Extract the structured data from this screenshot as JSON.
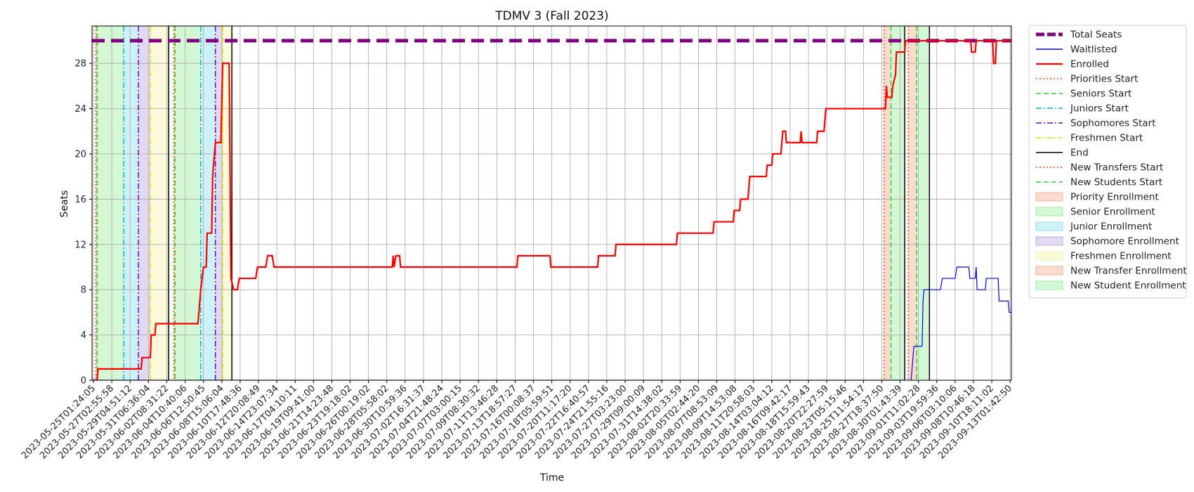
{
  "chart_data": {
    "type": "line",
    "title": "TDMV 3 (Fall 2023)",
    "xlabel": "Time",
    "ylabel": "Seats",
    "ylim": [
      0,
      30
    ],
    "yticks": [
      0,
      4,
      8,
      12,
      16,
      20,
      24,
      28
    ],
    "grid": true,
    "legend_placement": "outside-right",
    "x_tick_labels": [
      "2023-05-25T01:24:05",
      "2023-05-27T02:55:58",
      "2023-05-29T04:51:12",
      "2023-05-31T06:36:04",
      "2023-06-02T08:31:22",
      "2023-06-04T10:40:06",
      "2023-06-06T12:50:45",
      "2023-06-08T15:06:04",
      "2023-06-10T17:48:36",
      "2023-06-12T20:08:49",
      "2023-06-14T23:07:34",
      "2023-06-17T04:10:11",
      "2023-06-19T09:41:00",
      "2023-06-21T14:23:48",
      "2023-06-23T19:18:02",
      "2023-06-26T00:19:02",
      "2023-06-28T05:58:02",
      "2023-06-30T10:59:36",
      "2023-07-02T16:31:37",
      "2023-07-04T21:48:24",
      "2023-07-07T03:00:15",
      "2023-07-09T08:30:32",
      "2023-07-11T13:46:28",
      "2023-07-13T18:57:27",
      "2023-07-16T00:08:37",
      "2023-07-18T05:59:51",
      "2023-07-20T11:17:20",
      "2023-07-22T16:40:57",
      "2023-07-24T21:55:16",
      "2023-07-27T03:23:00",
      "2023-07-29T09:00:09",
      "2023-07-31T14:38:02",
      "2023-08-02T20:33:59",
      "2023-08-05T02:44:20",
      "2023-08-07T08:53:09",
      "2023-08-09T14:53:08",
      "2023-08-11T20:58:03",
      "2023-08-14T03:04:12",
      "2023-08-16T09:42:17",
      "2023-08-18T15:59:43",
      "2023-08-20T22:27:59",
      "2023-08-23T05:15:46",
      "2023-08-25T11:54:17",
      "2023-08-27T18:37:50",
      "2023-08-30T01:43:39",
      "2023-09-01T11:02:28",
      "2023-09-03T19:59:36",
      "2023-09-06T03:10:06",
      "2023-09-08T10:46:18",
      "2023-09-10T18:11:02",
      "2023-09-13T01:42:50"
    ],
    "x_range_tick_index": [
      -0.08,
      50.07
    ],
    "series": [
      {
        "name": "Total Seats",
        "color": "#800080",
        "style": "dashed",
        "points": [
          [
            -0.08,
            30
          ],
          [
            50.07,
            30
          ]
        ]
      },
      {
        "name": "Waitlisted",
        "color": "#0000ff",
        "style": "solid",
        "points": [
          [
            -0.08,
            0
          ],
          [
            44.6,
            0
          ],
          [
            44.75,
            3
          ],
          [
            45.2,
            3
          ],
          [
            45.25,
            7
          ],
          [
            45.3,
            8
          ],
          [
            46.2,
            8
          ],
          [
            46.3,
            9
          ],
          [
            47.0,
            9
          ],
          [
            47.1,
            10
          ],
          [
            47.75,
            10
          ],
          [
            47.8,
            9
          ],
          [
            48.1,
            9
          ],
          [
            48.15,
            10
          ],
          [
            48.2,
            8
          ],
          [
            48.65,
            8
          ],
          [
            48.7,
            9
          ],
          [
            49.35,
            9
          ],
          [
            49.4,
            7
          ],
          [
            49.9,
            7
          ],
          [
            49.95,
            6
          ],
          [
            50.07,
            6
          ]
        ]
      },
      {
        "name": "Enrolled",
        "color": "#ff0000",
        "style": "solid",
        "points": [
          [
            -0.08,
            0
          ],
          [
            0.2,
            0
          ],
          [
            0.25,
            1
          ],
          [
            2.6,
            1
          ],
          [
            2.65,
            2
          ],
          [
            3.1,
            2
          ],
          [
            3.15,
            4
          ],
          [
            3.35,
            4
          ],
          [
            3.4,
            5
          ],
          [
            5.7,
            5
          ],
          [
            5.75,
            6
          ],
          [
            5.85,
            8
          ],
          [
            6.0,
            10
          ],
          [
            6.15,
            10
          ],
          [
            6.2,
            13
          ],
          [
            6.45,
            13
          ],
          [
            6.5,
            18
          ],
          [
            6.65,
            21
          ],
          [
            6.95,
            21
          ],
          [
            7.05,
            28
          ],
          [
            7.4,
            28
          ],
          [
            7.5,
            9
          ],
          [
            7.65,
            8
          ],
          [
            7.85,
            8
          ],
          [
            7.95,
            9
          ],
          [
            8.85,
            9
          ],
          [
            8.95,
            10
          ],
          [
            9.4,
            10
          ],
          [
            9.5,
            11
          ],
          [
            9.75,
            11
          ],
          [
            9.85,
            10
          ],
          [
            16.3,
            10
          ],
          [
            16.35,
            11
          ],
          [
            16.4,
            10
          ],
          [
            16.5,
            11
          ],
          [
            16.7,
            11
          ],
          [
            16.75,
            10
          ],
          [
            23.1,
            10
          ],
          [
            23.15,
            11
          ],
          [
            24.9,
            11
          ],
          [
            24.95,
            10
          ],
          [
            27.5,
            10
          ],
          [
            27.55,
            11
          ],
          [
            28.45,
            11
          ],
          [
            28.5,
            12
          ],
          [
            31.8,
            12
          ],
          [
            31.85,
            13
          ],
          [
            33.8,
            13
          ],
          [
            33.85,
            14
          ],
          [
            34.9,
            14
          ],
          [
            34.95,
            15
          ],
          [
            35.25,
            15
          ],
          [
            35.3,
            16
          ],
          [
            35.7,
            16
          ],
          [
            35.75,
            17
          ],
          [
            35.8,
            18
          ],
          [
            36.7,
            18
          ],
          [
            36.75,
            19
          ],
          [
            37.0,
            19
          ],
          [
            37.05,
            20
          ],
          [
            37.5,
            20
          ],
          [
            37.6,
            22
          ],
          [
            37.75,
            22
          ],
          [
            37.8,
            21
          ],
          [
            38.55,
            21
          ],
          [
            38.6,
            22
          ],
          [
            38.65,
            21
          ],
          [
            39.45,
            21
          ],
          [
            39.5,
            22
          ],
          [
            39.85,
            22
          ],
          [
            39.9,
            23
          ],
          [
            39.95,
            24
          ],
          [
            43.2,
            24
          ],
          [
            43.25,
            26
          ],
          [
            43.3,
            25
          ],
          [
            43.55,
            25
          ],
          [
            43.6,
            26
          ],
          [
            43.75,
            27
          ],
          [
            43.8,
            29
          ],
          [
            44.25,
            29
          ],
          [
            44.3,
            30
          ],
          [
            47.85,
            30
          ],
          [
            47.9,
            29
          ],
          [
            48.1,
            29
          ],
          [
            48.15,
            30
          ],
          [
            49.05,
            30
          ],
          [
            49.1,
            28
          ],
          [
            49.2,
            28
          ],
          [
            49.25,
            30
          ],
          [
            50.07,
            30
          ]
        ]
      }
    ],
    "vertical_markers": [
      {
        "name": "Priorities Start",
        "color": "#ff4500",
        "style": "dotted",
        "x": [
          0.13,
          4.38,
          43.12,
          44.45
        ]
      },
      {
        "name": "Seniors Start",
        "color": "#32cd32",
        "style": "dashed",
        "x": [
          0.2,
          4.45,
          43.5,
          44.9
        ]
      },
      {
        "name": "Juniors Start",
        "color": "#00bcd4",
        "style": "dashdot",
        "x": [
          1.65,
          5.85
        ]
      },
      {
        "name": "Sophomores Start",
        "color": "#6a0dad",
        "style": "dashdot",
        "x": [
          2.45,
          6.65
        ]
      },
      {
        "name": "Freshmen Start",
        "color": "#e0e000",
        "style": "dashdot",
        "x": [
          3.1,
          7.05
        ]
      },
      {
        "name": "End",
        "color": "#000000",
        "style": "solid",
        "x": [
          4.1,
          7.55,
          44.25,
          45.6
        ]
      },
      {
        "name": "New Transfers Start",
        "color": "#ff4500",
        "style": "dotted",
        "x": []
      },
      {
        "name": "New Students Start",
        "color": "#32cd32",
        "style": "dashed",
        "x": []
      }
    ],
    "shaded_regions": [
      {
        "name": "Priority Enrollment",
        "color": "#f4a582",
        "spans": [
          [
            0.13,
            0.2
          ],
          [
            4.38,
            4.45
          ]
        ]
      },
      {
        "name": "Senior Enrollment",
        "color": "#90ee90",
        "spans": [
          [
            0.2,
            1.65
          ],
          [
            4.45,
            5.85
          ]
        ]
      },
      {
        "name": "Junior Enrollment",
        "color": "#7fdbe8",
        "spans": [
          [
            1.65,
            2.45
          ],
          [
            5.85,
            6.65
          ]
        ]
      },
      {
        "name": "Sophomore Enrollment",
        "color": "#b39ddb",
        "spans": [
          [
            2.45,
            3.1
          ],
          [
            6.65,
            7.05
          ]
        ]
      },
      {
        "name": "Freshmen Enrollment",
        "color": "#f3f3a6",
        "spans": [
          [
            3.1,
            4.1
          ],
          [
            7.05,
            7.55
          ]
        ]
      },
      {
        "name": "New Transfer Enrollment",
        "color": "#f4a582",
        "spans": [
          [
            43.12,
            43.5
          ],
          [
            44.45,
            44.9
          ]
        ]
      },
      {
        "name": "New Student Enrollment",
        "color": "#90ee90",
        "spans": [
          [
            43.5,
            44.25
          ],
          [
            44.9,
            45.6
          ]
        ]
      }
    ],
    "legend": [
      {
        "label": "Total Seats",
        "kind": "line",
        "color": "#800080",
        "style": "thick-dash"
      },
      {
        "label": "Waitlisted",
        "kind": "line",
        "color": "#0000ff",
        "style": "solid"
      },
      {
        "label": "Enrolled",
        "kind": "line",
        "color": "#ff0000",
        "style": "solid-bold"
      },
      {
        "label": "Priorities Start",
        "kind": "line",
        "color": "#ff4500",
        "style": "dotted"
      },
      {
        "label": "Seniors Start",
        "kind": "line",
        "color": "#32cd32",
        "style": "dashed"
      },
      {
        "label": "Juniors Start",
        "kind": "line",
        "color": "#00bcd4",
        "style": "dashdot"
      },
      {
        "label": "Sophomores Start",
        "kind": "line",
        "color": "#6a0dad",
        "style": "dashdot"
      },
      {
        "label": "Freshmen Start",
        "kind": "line",
        "color": "#e0e000",
        "style": "dashdot"
      },
      {
        "label": "End",
        "kind": "line",
        "color": "#000000",
        "style": "solid"
      },
      {
        "label": "New Transfers Start",
        "kind": "line",
        "color": "#ff4500",
        "style": "dotted"
      },
      {
        "label": "New Students Start",
        "kind": "line",
        "color": "#32cd32",
        "style": "dashed"
      },
      {
        "label": "Priority Enrollment",
        "kind": "patch",
        "color": "#f4a582"
      },
      {
        "label": "Senior Enrollment",
        "kind": "patch",
        "color": "#90ee90"
      },
      {
        "label": "Junior Enrollment",
        "kind": "patch",
        "color": "#7fdbe8"
      },
      {
        "label": "Sophomore Enrollment",
        "kind": "patch",
        "color": "#b39ddb"
      },
      {
        "label": "Freshmen Enrollment",
        "kind": "patch",
        "color": "#f3f3a6"
      },
      {
        "label": "New Transfer Enrollment",
        "kind": "patch",
        "color": "#f4a582"
      },
      {
        "label": "New Student Enrollment",
        "kind": "patch",
        "color": "#90ee90"
      }
    ]
  }
}
